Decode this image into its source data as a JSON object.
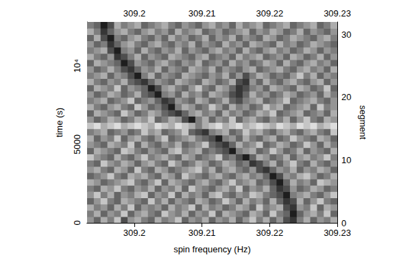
{
  "chart_data": {
    "type": "heatmap",
    "xlabel": "spin frequency (Hz)",
    "ylabel": "time (s)",
    "y2label": "segment",
    "xlim": [
      309.193,
      309.23
    ],
    "xticks": [
      309.2,
      309.21,
      309.22,
      309.23
    ],
    "ylim": [
      0,
      12800
    ],
    "yticks": [
      0,
      5000,
      {
        "value": 10000,
        "label": "10⁴"
      }
    ],
    "y2lim": [
      0,
      32
    ],
    "y2ticks": [
      0,
      10,
      20,
      30
    ],
    "x_bins": [
      309.193,
      309.194,
      309.195,
      309.196,
      309.197,
      309.198,
      309.199,
      309.2,
      309.201,
      309.202,
      309.203,
      309.204,
      309.205,
      309.206,
      309.207,
      309.208,
      309.209,
      309.21,
      309.211,
      309.212,
      309.213,
      309.214,
      309.215,
      309.216,
      309.217,
      309.218,
      309.219,
      309.22,
      309.221,
      309.222,
      309.223,
      309.224,
      309.225,
      309.226,
      309.227,
      309.228,
      309.229,
      309.23
    ],
    "segment_bins": [
      0,
      1,
      2,
      3,
      4,
      5,
      6,
      7,
      8,
      9,
      10,
      11,
      12,
      13,
      14,
      15,
      16,
      17,
      18,
      19,
      20,
      21,
      22,
      23,
      24,
      25,
      26,
      27,
      28,
      29,
      30,
      31,
      32
    ],
    "cell_range": [
      0,
      9
    ],
    "cells": [
      [
        4,
        6,
        3,
        5,
        2,
        7,
        4,
        3,
        5,
        6,
        3,
        5,
        4,
        2,
        6,
        4,
        5,
        3,
        6,
        4,
        5,
        3,
        6,
        4,
        2,
        5,
        3,
        6,
        4,
        7,
        8,
        5,
        3,
        6,
        4,
        5,
        3
      ],
      [
        5,
        3,
        6,
        4,
        5,
        2,
        6,
        4,
        3,
        5,
        6,
        2,
        4,
        5,
        3,
        6,
        4,
        5,
        2,
        6,
        3,
        4,
        5,
        6,
        3,
        4,
        6,
        2,
        5,
        6,
        9,
        6,
        4,
        3,
        5,
        2,
        6
      ],
      [
        3,
        5,
        4,
        6,
        3,
        5,
        2,
        6,
        4,
        5,
        4,
        6,
        3,
        5,
        4,
        2,
        6,
        3,
        5,
        4,
        6,
        5,
        3,
        4,
        6,
        2,
        5,
        4,
        3,
        7,
        8,
        4,
        5,
        2,
        6,
        3,
        4
      ],
      [
        6,
        4,
        2,
        5,
        6,
        3,
        4,
        5,
        6,
        2,
        5,
        3,
        6,
        4,
        5,
        6,
        3,
        4,
        6,
        5,
        2,
        4,
        6,
        3,
        5,
        4,
        6,
        3,
        6,
        8,
        7,
        3,
        6,
        4,
        2,
        5,
        6
      ],
      [
        4,
        2,
        5,
        3,
        6,
        4,
        5,
        3,
        2,
        6,
        4,
        5,
        2,
        6,
        3,
        5,
        4,
        6,
        3,
        2,
        5,
        6,
        4,
        5,
        2,
        3,
        5,
        6,
        7,
        9,
        5,
        4,
        3,
        5,
        6,
        4,
        2
      ],
      [
        5,
        6,
        3,
        4,
        2,
        5,
        6,
        4,
        5,
        3,
        6,
        4,
        5,
        3,
        6,
        2,
        4,
        5,
        6,
        4,
        3,
        5,
        2,
        6,
        4,
        5,
        3,
        6,
        8,
        7,
        4,
        6,
        5,
        3,
        4,
        6,
        5
      ],
      [
        3,
        4,
        6,
        5,
        4,
        3,
        2,
        5,
        6,
        4,
        2,
        6,
        3,
        4,
        5,
        6,
        4,
        3,
        5,
        6,
        4,
        2,
        5,
        4,
        3,
        6,
        5,
        7,
        9,
        6,
        3,
        5,
        4,
        6,
        2,
        3,
        4
      ],
      [
        6,
        5,
        4,
        2,
        5,
        6,
        3,
        4,
        3,
        5,
        6,
        3,
        4,
        6,
        2,
        4,
        5,
        6,
        4,
        3,
        5,
        6,
        4,
        3,
        5,
        4,
        6,
        9,
        7,
        4,
        5,
        3,
        2,
        4,
        6,
        5,
        3
      ],
      [
        4,
        3,
        5,
        6,
        3,
        4,
        6,
        2,
        5,
        6,
        3,
        4,
        6,
        5,
        4,
        3,
        2,
        5,
        3,
        6,
        4,
        3,
        5,
        6,
        4,
        7,
        8,
        6,
        4,
        5,
        3,
        6,
        4,
        5,
        3,
        4,
        6
      ],
      [
        5,
        6,
        2,
        4,
        5,
        3,
        4,
        6,
        4,
        3,
        5,
        6,
        2,
        4,
        6,
        5,
        3,
        4,
        6,
        5,
        3,
        4,
        6,
        5,
        8,
        7,
        5,
        3,
        6,
        4,
        2,
        5,
        6,
        3,
        5,
        6,
        4
      ],
      [
        2,
        4,
        5,
        6,
        3,
        5,
        6,
        4,
        2,
        5,
        4,
        3,
        5,
        6,
        3,
        4,
        6,
        5,
        4,
        2,
        6,
        5,
        7,
        9,
        6,
        3,
        4,
        6,
        5,
        3,
        6,
        4,
        3,
        5,
        4,
        2,
        5
      ],
      [
        6,
        3,
        4,
        5,
        6,
        2,
        3,
        5,
        6,
        4,
        5,
        6,
        3,
        2,
        5,
        4,
        3,
        6,
        5,
        6,
        7,
        9,
        5,
        4,
        3,
        6,
        5,
        2,
        4,
        6,
        5,
        3,
        6,
        4,
        5,
        6,
        3
      ],
      [
        4,
        5,
        6,
        3,
        4,
        5,
        2,
        6,
        3,
        5,
        6,
        4,
        5,
        3,
        6,
        5,
        4,
        2,
        6,
        7,
        8,
        6,
        3,
        5,
        4,
        2,
        6,
        5,
        3,
        4,
        6,
        5,
        2,
        4,
        6,
        3,
        5
      ],
      [
        3,
        6,
        4,
        5,
        2,
        6,
        4,
        3,
        5,
        6,
        4,
        2,
        6,
        5,
        4,
        3,
        5,
        6,
        7,
        9,
        5,
        4,
        6,
        3,
        5,
        6,
        4,
        3,
        6,
        5,
        2,
        4,
        5,
        6,
        3,
        4,
        6
      ],
      [
        5,
        4,
        3,
        6,
        5,
        4,
        6,
        5,
        2,
        4,
        3,
        6,
        5,
        4,
        2,
        6,
        7,
        8,
        5,
        4,
        3,
        6,
        5,
        2,
        4,
        3,
        5,
        6,
        4,
        3,
        5,
        6,
        4,
        3,
        5,
        6,
        2
      ],
      [
        2,
        1,
        3,
        2,
        1,
        3,
        2,
        1,
        2,
        3,
        1,
        2,
        3,
        1,
        2,
        3,
        5,
        3,
        2,
        1,
        3,
        2,
        1,
        3,
        2,
        1,
        2,
        3,
        1,
        2,
        3,
        1,
        2,
        1,
        3,
        2,
        1
      ],
      [
        4,
        6,
        5,
        3,
        4,
        6,
        5,
        3,
        4,
        2,
        6,
        5,
        3,
        4,
        7,
        9,
        5,
        3,
        6,
        4,
        5,
        2,
        6,
        4,
        3,
        5,
        6,
        4,
        5,
        3,
        6,
        4,
        2,
        5,
        6,
        3,
        4
      ],
      [
        6,
        3,
        4,
        5,
        6,
        2,
        4,
        6,
        5,
        3,
        4,
        6,
        7,
        8,
        6,
        4,
        3,
        5,
        4,
        6,
        3,
        5,
        4,
        6,
        5,
        3,
        4,
        2,
        6,
        5,
        4,
        3,
        6,
        5,
        4,
        6,
        3
      ],
      [
        3,
        5,
        6,
        4,
        3,
        5,
        6,
        2,
        4,
        6,
        5,
        7,
        9,
        5,
        3,
        4,
        6,
        5,
        2,
        4,
        6,
        3,
        5,
        4,
        6,
        5,
        2,
        4,
        3,
        6,
        5,
        4,
        3,
        6,
        2,
        5,
        4
      ],
      [
        5,
        4,
        3,
        6,
        5,
        4,
        2,
        6,
        5,
        4,
        6,
        8,
        7,
        4,
        5,
        6,
        3,
        4,
        6,
        5,
        3,
        6,
        7,
        5,
        4,
        3,
        6,
        5,
        4,
        2,
        6,
        5,
        4,
        3,
        5,
        6,
        4
      ],
      [
        4,
        6,
        5,
        3,
        4,
        6,
        5,
        3,
        6,
        7,
        9,
        5,
        4,
        6,
        3,
        5,
        4,
        6,
        3,
        4,
        5,
        7,
        8,
        6,
        3,
        5,
        4,
        6,
        5,
        3,
        4,
        6,
        5,
        4,
        6,
        3,
        5
      ],
      [
        6,
        3,
        4,
        5,
        2,
        6,
        4,
        5,
        6,
        9,
        7,
        4,
        3,
        5,
        6,
        4,
        2,
        5,
        6,
        3,
        4,
        6,
        8,
        7,
        5,
        4,
        6,
        3,
        4,
        5,
        6,
        3,
        4,
        6,
        5,
        2,
        6
      ],
      [
        3,
        5,
        6,
        4,
        5,
        3,
        6,
        7,
        8,
        6,
        4,
        5,
        6,
        3,
        4,
        5,
        6,
        3,
        4,
        6,
        5,
        3,
        7,
        8,
        4,
        6,
        3,
        5,
        6,
        4,
        3,
        5,
        6,
        4,
        3,
        6,
        4
      ],
      [
        5,
        4,
        3,
        6,
        4,
        5,
        7,
        9,
        5,
        3,
        6,
        4,
        5,
        6,
        3,
        4,
        5,
        6,
        4,
        5,
        3,
        6,
        4,
        7,
        5,
        3,
        4,
        6,
        5,
        6,
        4,
        2,
        5,
        3,
        6,
        4,
        5
      ],
      [
        4,
        6,
        5,
        3,
        5,
        7,
        8,
        6,
        4,
        5,
        3,
        6,
        4,
        5,
        6,
        3,
        4,
        5,
        3,
        6,
        4,
        5,
        6,
        4,
        3,
        6,
        5,
        4,
        3,
        5,
        6,
        4,
        3,
        5,
        4,
        6,
        3
      ],
      [
        6,
        3,
        4,
        5,
        6,
        9,
        7,
        4,
        5,
        6,
        4,
        3,
        5,
        6,
        4,
        5,
        3,
        6,
        5,
        4,
        6,
        3,
        5,
        4,
        6,
        5,
        3,
        4,
        6,
        3,
        5,
        6,
        4,
        3,
        5,
        4,
        6
      ],
      [
        3,
        5,
        6,
        4,
        8,
        7,
        5,
        3,
        6,
        4,
        5,
        6,
        3,
        4,
        5,
        6,
        4,
        3,
        6,
        5,
        4,
        6,
        3,
        5,
        4,
        3,
        6,
        5,
        4,
        6,
        3,
        4,
        6,
        5,
        3,
        6,
        4
      ],
      [
        5,
        4,
        3,
        7,
        9,
        5,
        4,
        6,
        3,
        5,
        6,
        4,
        5,
        3,
        6,
        4,
        5,
        6,
        4,
        3,
        5,
        4,
        6,
        3,
        5,
        6,
        4,
        3,
        5,
        4,
        6,
        5,
        3,
        4,
        6,
        4,
        5
      ],
      [
        4,
        6,
        5,
        8,
        6,
        4,
        3,
        5,
        6,
        4,
        3,
        5,
        6,
        4,
        5,
        3,
        6,
        4,
        5,
        6,
        3,
        5,
        4,
        6,
        3,
        4,
        5,
        6,
        3,
        5,
        4,
        6,
        5,
        3,
        4,
        5,
        6
      ],
      [
        6,
        3,
        7,
        9,
        5,
        6,
        4,
        3,
        5,
        6,
        4,
        6,
        3,
        5,
        4,
        6,
        5,
        3,
        6,
        4,
        5,
        3,
        6,
        4,
        5,
        6,
        3,
        4,
        6,
        5,
        3,
        4,
        5,
        6,
        4,
        3,
        5
      ],
      [
        3,
        5,
        8,
        6,
        4,
        3,
        5,
        6,
        4,
        3,
        5,
        4,
        6,
        3,
        5,
        4,
        3,
        6,
        5,
        4,
        6,
        5,
        4,
        3,
        6,
        4,
        5,
        3,
        4,
        6,
        5,
        3,
        6,
        4,
        5,
        6,
        4
      ],
      [
        5,
        6,
        9,
        7,
        3,
        5,
        4,
        3,
        6,
        5,
        4,
        3,
        5,
        6,
        4,
        5,
        6,
        4,
        3,
        5,
        4,
        6,
        3,
        5,
        4,
        3,
        6,
        5,
        4,
        3,
        6,
        5,
        4,
        3,
        6,
        5,
        3
      ]
    ]
  }
}
